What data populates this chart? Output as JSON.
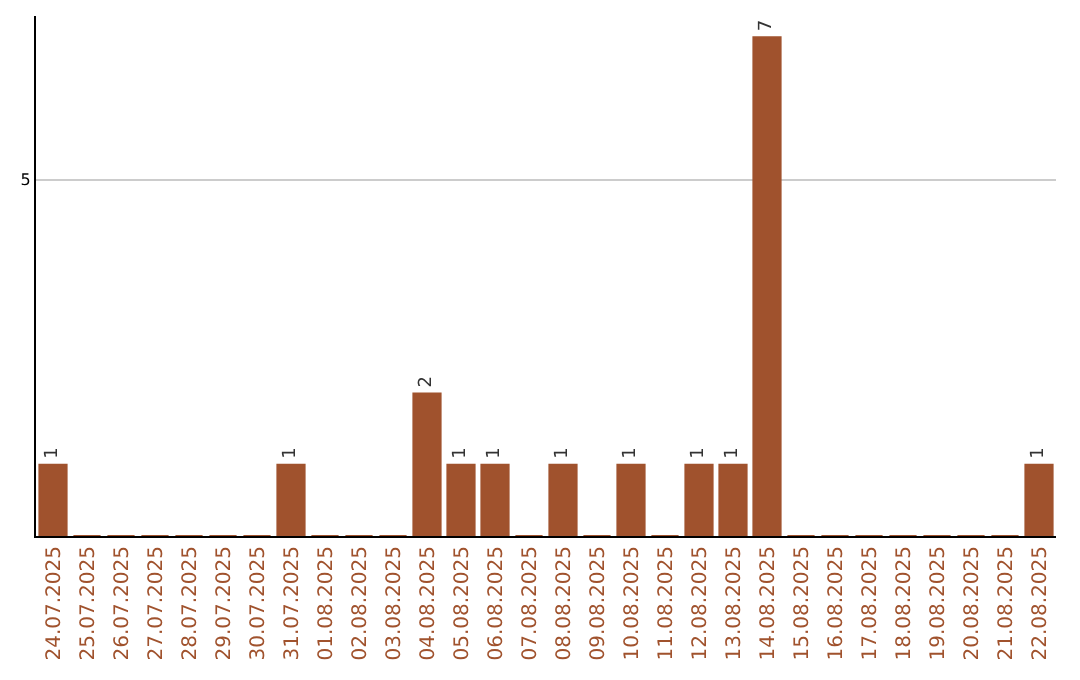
{
  "chart_data": {
    "type": "bar",
    "categories": [
      "24.07.2025",
      "25.07.2025",
      "26.07.2025",
      "27.07.2025",
      "28.07.2025",
      "29.07.2025",
      "30.07.2025",
      "31.07.2025",
      "01.08.2025",
      "02.08.2025",
      "03.08.2025",
      "04.08.2025",
      "05.08.2025",
      "06.08.2025",
      "07.08.2025",
      "08.08.2025",
      "09.08.2025",
      "10.08.2025",
      "11.08.2025",
      "12.08.2025",
      "13.08.2025",
      "14.08.2025",
      "15.08.2025",
      "16.08.2025",
      "17.08.2025",
      "18.08.2025",
      "19.08.2025",
      "20.08.2025",
      "21.08.2025",
      "22.08.2025"
    ],
    "values": [
      1,
      0,
      0,
      0,
      0,
      0,
      0,
      1,
      0,
      0,
      0,
      2,
      1,
      1,
      0,
      1,
      0,
      1,
      0,
      1,
      1,
      7,
      0,
      0,
      0,
      0,
      0,
      0,
      0,
      1
    ],
    "value_labels": [
      "1",
      null,
      null,
      null,
      null,
      null,
      null,
      "1",
      null,
      null,
      null,
      "2",
      "1",
      "1",
      null,
      "1",
      null,
      "1",
      null,
      "1",
      "1",
      "7",
      null,
      null,
      null,
      null,
      null,
      null,
      null,
      "1"
    ],
    "color": "#a0522d",
    "ylim": [
      0,
      7.3
    ],
    "yticks": [
      5
    ],
    "grid": "y",
    "legend": false
  }
}
